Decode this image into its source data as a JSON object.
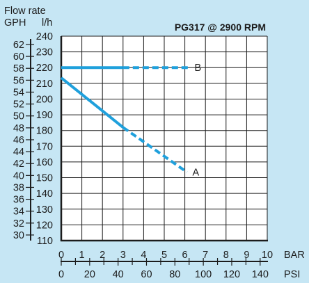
{
  "chart_data": {
    "type": "line",
    "title": "PG317 @ 2900 RPM",
    "ylabel_main": "Flow rate",
    "ylabel_units": [
      "GPH",
      "l/h"
    ],
    "x": {
      "label": "BAR",
      "range": [
        0,
        10
      ],
      "ticks": [
        0,
        1,
        2,
        3,
        4,
        5,
        6,
        7,
        8,
        9,
        10
      ]
    },
    "x2": {
      "label": "PSI",
      "range": [
        0,
        145
      ],
      "ticks": [
        0,
        20,
        40,
        60,
        80,
        100,
        120,
        140
      ],
      "minor_step": 10
    },
    "y": {
      "label": "l/h",
      "range": [
        110,
        240
      ],
      "ticks": [
        110,
        120,
        130,
        140,
        150,
        160,
        170,
        180,
        190,
        200,
        210,
        220,
        230,
        240
      ]
    },
    "y2": {
      "label": "GPH",
      "range": [
        29.06,
        63.4
      ],
      "ticks": [
        30,
        32,
        34,
        36,
        38,
        40,
        42,
        44,
        46,
        48,
        50,
        52,
        54,
        56,
        58,
        60,
        62
      ]
    },
    "series": [
      {
        "name": "A",
        "color": "#1fa0dc",
        "solid": [
          [
            0,
            213.5
          ],
          [
            3,
            182
          ]
        ],
        "dashed": [
          [
            3,
            182
          ],
          [
            6.1,
            153.5
          ]
        ]
      },
      {
        "name": "B",
        "color": "#1fa0dc",
        "solid": [
          [
            0,
            220
          ],
          [
            3,
            220
          ]
        ],
        "dashed": [
          [
            3,
            220
          ],
          [
            6.2,
            220
          ]
        ]
      }
    ],
    "grid": true
  }
}
